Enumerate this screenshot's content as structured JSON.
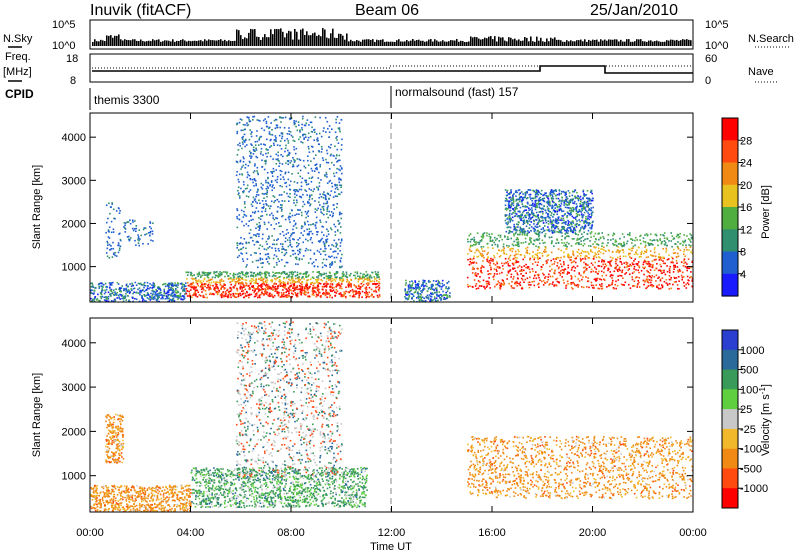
{
  "header": {
    "station": "Inuvik (fitACF)",
    "beam": "Beam 06",
    "date": "25/Jan/2010"
  },
  "params": {
    "nsky_label": "N.Sky",
    "nsearch_label": "N.Search",
    "freq_label": "Freq.",
    "freq_unit": "[MHz]",
    "nave_label": "Nave",
    "cpid_label": "CPID",
    "nsky_ticks": [
      "10^5",
      "10^0"
    ],
    "nsearch_ticks": [
      "10^5",
      "10^0"
    ],
    "freq_ticks": [
      "18",
      "8"
    ],
    "nave_ticks": [
      "60",
      "0"
    ],
    "cpid_segments": [
      {
        "name": "themis 3300",
        "start_hour": 0
      },
      {
        "name": "normalsound (fast) 157",
        "start_hour": 12
      }
    ]
  },
  "chart_data": [
    {
      "type": "heatmap",
      "title": "",
      "xlabel": "",
      "ylabel": "Slant Range [km]",
      "x_range_hours": [
        0,
        24
      ],
      "ylim": [
        180,
        4560
      ],
      "yticks": [
        1000,
        2000,
        3000,
        4000
      ],
      "colorbar": {
        "label": "Power [dB]",
        "ticks": [
          "4",
          "8",
          "12",
          "16",
          "20",
          "24",
          "28"
        ],
        "colors": [
          "#1a1aff",
          "#1f5fcf",
          "#2f8f6f",
          "#4fae3f",
          "#e8c21f",
          "#f08a14",
          "#ff4a10",
          "#ff0000"
        ]
      },
      "echo_regions": [
        {
          "x": [
            0.0,
            3.8
          ],
          "y": [
            200,
            650
          ],
          "level": "mid"
        },
        {
          "x": [
            3.8,
            11.5
          ],
          "y": [
            300,
            900
          ],
          "level": "high"
        },
        {
          "x": [
            12.5,
            14.3
          ],
          "y": [
            200,
            700
          ],
          "level": "mid"
        },
        {
          "x": [
            15.0,
            24.0
          ],
          "y": [
            500,
            1800
          ],
          "level": "high"
        },
        {
          "x": [
            16.5,
            20.0
          ],
          "y": [
            1800,
            2800
          ],
          "level": "mid"
        },
        {
          "x": [
            0.6,
            1.2
          ],
          "y": [
            1200,
            2500
          ],
          "level": "low"
        },
        {
          "x": [
            1.3,
            2.5
          ],
          "y": [
            1500,
            2100
          ],
          "level": "low"
        },
        {
          "x": [
            5.8,
            10.0
          ],
          "y": [
            1000,
            4500
          ],
          "level": "low"
        }
      ]
    },
    {
      "type": "heatmap",
      "title": "",
      "xlabel": "Time UT",
      "ylabel": "Slant Range [km]",
      "x_range_hours": [
        0,
        24
      ],
      "ylim": [
        180,
        4560
      ],
      "yticks": [
        1000,
        2000,
        3000,
        4000
      ],
      "xticks": [
        "00:00",
        "04:00",
        "08:00",
        "12:00",
        "16:00",
        "20:00",
        "00:00"
      ],
      "colorbar": {
        "label": "Velocity [m s^-1]",
        "ticks": [
          "1000",
          "500",
          "100",
          "25",
          "-25",
          "-100",
          "-500",
          "-1000"
        ],
        "colors": [
          "#2a3fcf",
          "#2a6a9a",
          "#3a9a5a",
          "#5fcf3f",
          "#c8c8c8",
          "#f0b82a",
          "#f08a14",
          "#ff4a10",
          "#ff0000"
        ]
      },
      "echo_regions": [
        {
          "x": [
            0.0,
            4.0
          ],
          "y": [
            200,
            800
          ],
          "level": "neg"
        },
        {
          "x": [
            4.0,
            11.0
          ],
          "y": [
            300,
            1200
          ],
          "level": "pos"
        },
        {
          "x": [
            15.0,
            24.0
          ],
          "y": [
            500,
            1900
          ],
          "level": "neg"
        },
        {
          "x": [
            0.6,
            1.3
          ],
          "y": [
            1300,
            2400
          ],
          "level": "neg"
        },
        {
          "x": [
            5.8,
            10.0
          ],
          "y": [
            1000,
            4500
          ],
          "level": "mixed"
        }
      ]
    }
  ]
}
